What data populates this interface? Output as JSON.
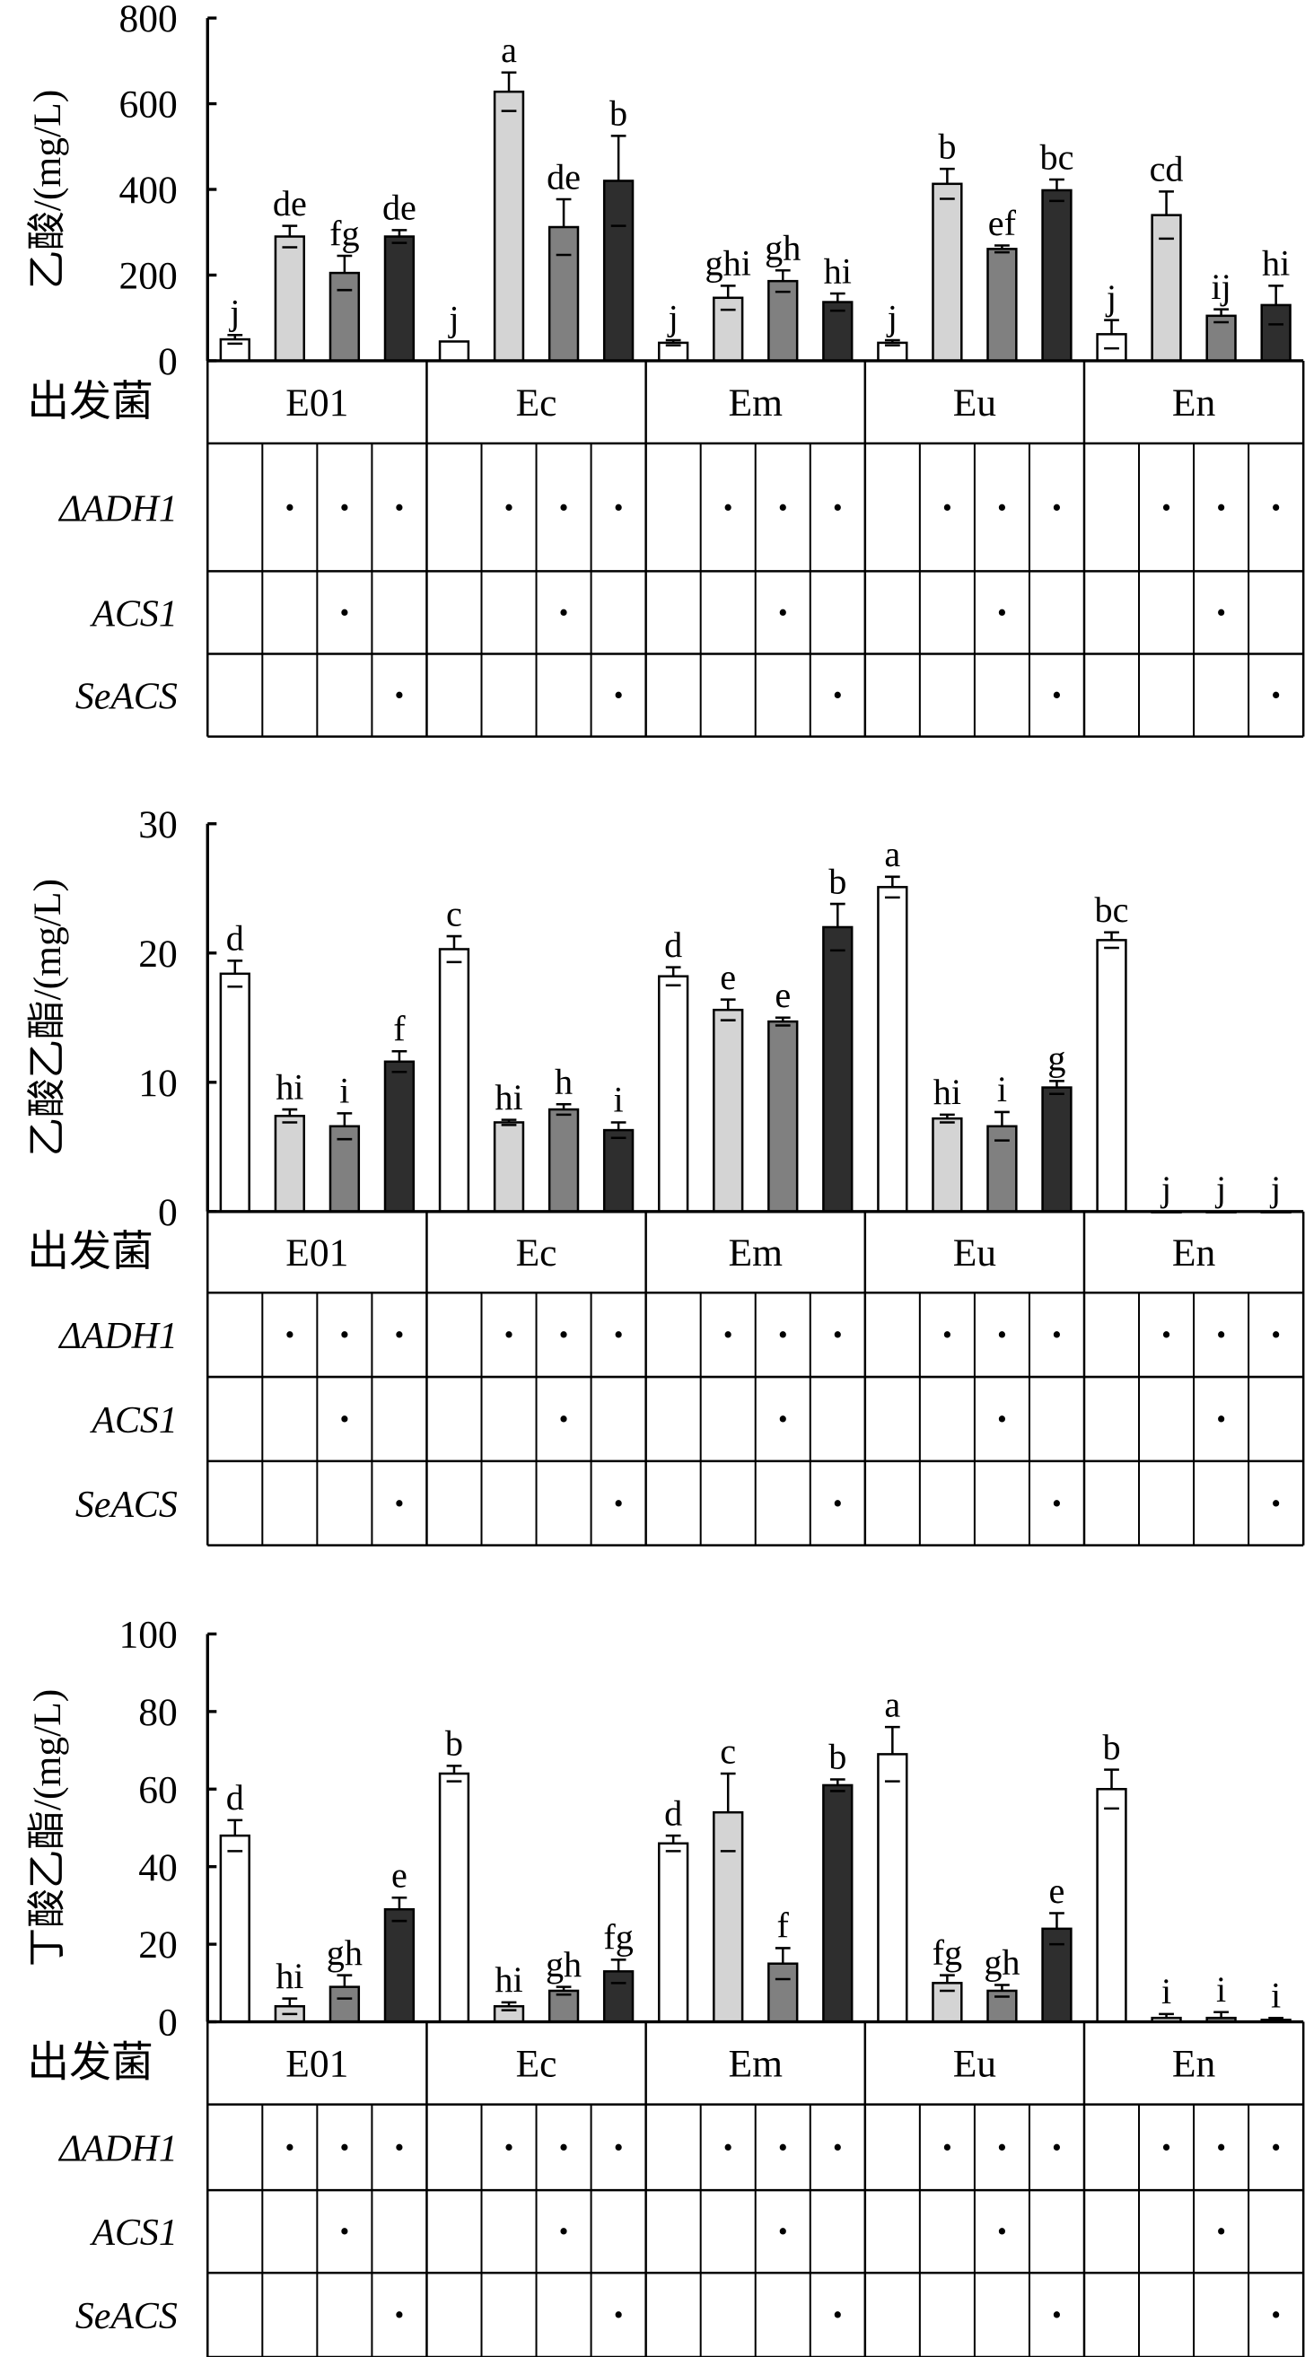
{
  "colors": [
    "#ffffff",
    "#d4d4d4",
    "#808080",
    "#2e2e2e"
  ],
  "table_row_labels": {
    "strain": "出发菌",
    "adh1": "ΔADH1",
    "acs1": "ACS1",
    "seacs": "SeACS"
  },
  "groups": [
    "E01",
    "Ec",
    "Em",
    "Eu",
    "En"
  ],
  "markers": {
    "adh1": [
      false,
      true,
      true,
      true
    ],
    "acs1": [
      false,
      false,
      true,
      false
    ],
    "seacs": [
      false,
      false,
      false,
      true
    ]
  },
  "marker_symbol": "•",
  "chart_data": [
    {
      "type": "bar",
      "ylabel": "乙酸/(mg/L)",
      "ylim": [
        0,
        800
      ],
      "yticks": [
        "0",
        "200",
        "400",
        "600",
        "800"
      ],
      "values": [
        [
          50,
          290,
          205,
          290
        ],
        [
          45,
          628,
          312,
          420
        ],
        [
          42,
          147,
          186,
          137
        ],
        [
          42,
          413,
          261,
          398
        ],
        [
          62,
          340,
          105,
          130
        ]
      ],
      "errors": [
        [
          10,
          25,
          40,
          15
        ],
        [
          0,
          45,
          65,
          105
        ],
        [
          6,
          28,
          25,
          20
        ],
        [
          6,
          35,
          8,
          25
        ],
        [
          33,
          55,
          15,
          45
        ]
      ],
      "letters": [
        [
          "j",
          "de",
          "fg",
          "de"
        ],
        [
          "j",
          "a",
          "de",
          "b"
        ],
        [
          "j",
          "ghi",
          "gh",
          "hi"
        ],
        [
          "j",
          "b",
          "ef",
          "bc"
        ],
        [
          "j",
          "cd",
          "ij",
          "hi"
        ]
      ]
    },
    {
      "type": "bar",
      "ylabel": "乙酸乙酯/(mg/L)",
      "ylim": [
        0,
        30
      ],
      "yticks": [
        "0",
        "10",
        "20",
        "30"
      ],
      "values": [
        [
          18.4,
          7.4,
          6.6,
          11.6
        ],
        [
          20.3,
          6.9,
          7.9,
          6.3
        ],
        [
          18.2,
          15.6,
          14.7,
          22.0
        ],
        [
          25.1,
          7.2,
          6.6,
          9.6
        ],
        [
          21.0,
          0,
          0,
          0
        ]
      ],
      "errors": [
        [
          1.0,
          0.5,
          1.0,
          0.8
        ],
        [
          1.0,
          0.2,
          0.4,
          0.6
        ],
        [
          0.7,
          0.8,
          0.3,
          1.8
        ],
        [
          0.8,
          0.3,
          1.1,
          0.5
        ],
        [
          0.6,
          0,
          0,
          0
        ]
      ],
      "letters": [
        [
          "d",
          "hi",
          "i",
          "f"
        ],
        [
          "c",
          "hi",
          "h",
          "i"
        ],
        [
          "d",
          "e",
          "e",
          "b"
        ],
        [
          "a",
          "hi",
          "i",
          "g"
        ],
        [
          "bc",
          "j",
          "j",
          "j"
        ]
      ]
    },
    {
      "type": "bar",
      "ylabel": "丁酸乙酯/(mg/L)",
      "ylim": [
        0,
        100
      ],
      "yticks": [
        "0",
        "20",
        "40",
        "60",
        "80",
        "100"
      ],
      "values": [
        [
          48,
          4,
          9,
          29
        ],
        [
          64,
          4,
          8,
          13
        ],
        [
          46,
          54,
          15,
          61
        ],
        [
          69,
          10,
          8,
          24
        ],
        [
          60,
          1,
          1,
          0.5
        ]
      ],
      "errors": [
        [
          4,
          2,
          3,
          3
        ],
        [
          2,
          1,
          1,
          3
        ],
        [
          2,
          10,
          4,
          1.5
        ],
        [
          7,
          2,
          1.5,
          4
        ],
        [
          5,
          1,
          1.5,
          0.5
        ]
      ],
      "letters": [
        [
          "d",
          "hi",
          "gh",
          "e"
        ],
        [
          "b",
          "hi",
          "gh",
          "fg"
        ],
        [
          "d",
          "c",
          "f",
          "b"
        ],
        [
          "a",
          "fg",
          "gh",
          "e"
        ],
        [
          "b",
          "i",
          "i",
          "i"
        ]
      ]
    }
  ]
}
